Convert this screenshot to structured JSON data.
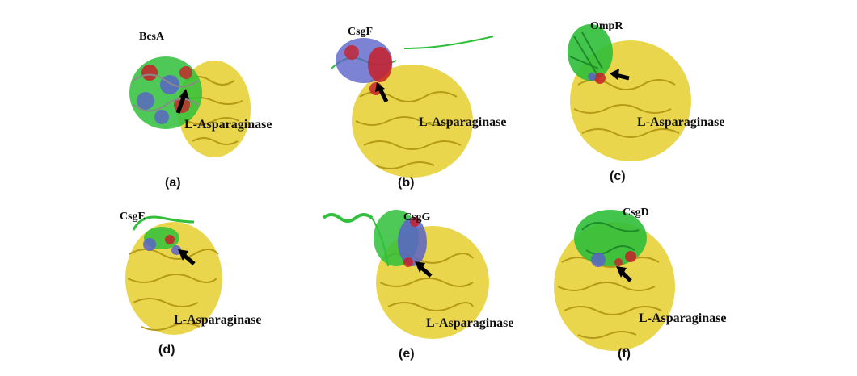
{
  "enzyme_name": "L-Asparaginase",
  "colors": {
    "enzyme": "#e8d238",
    "enzyme_dark": "#b49a18",
    "partner": "#2fbf3a",
    "interface_blue": "#5b63c9",
    "interface_red": "#c8202a",
    "arrow": "#000000"
  },
  "panels": [
    {
      "id": "a",
      "letter": "(a)",
      "protein": "BcsA",
      "enzyme_label": "L-Asparaginase"
    },
    {
      "id": "b",
      "letter": "(b)",
      "protein": "CsgF",
      "enzyme_label": "L-Asparaginase"
    },
    {
      "id": "c",
      "letter": "(c)",
      "protein": "OmpR",
      "enzyme_label": "L-Asparaginase"
    },
    {
      "id": "d",
      "letter": "(d)",
      "protein": "CsgE",
      "enzyme_label": "L-Asparaginase"
    },
    {
      "id": "e",
      "letter": "(e)",
      "protein": "CsgG",
      "enzyme_label": "L-Asparaginase"
    },
    {
      "id": "f",
      "letter": "(f)",
      "protein": "CsgD",
      "enzyme_label": "L-Asparaginase"
    }
  ]
}
